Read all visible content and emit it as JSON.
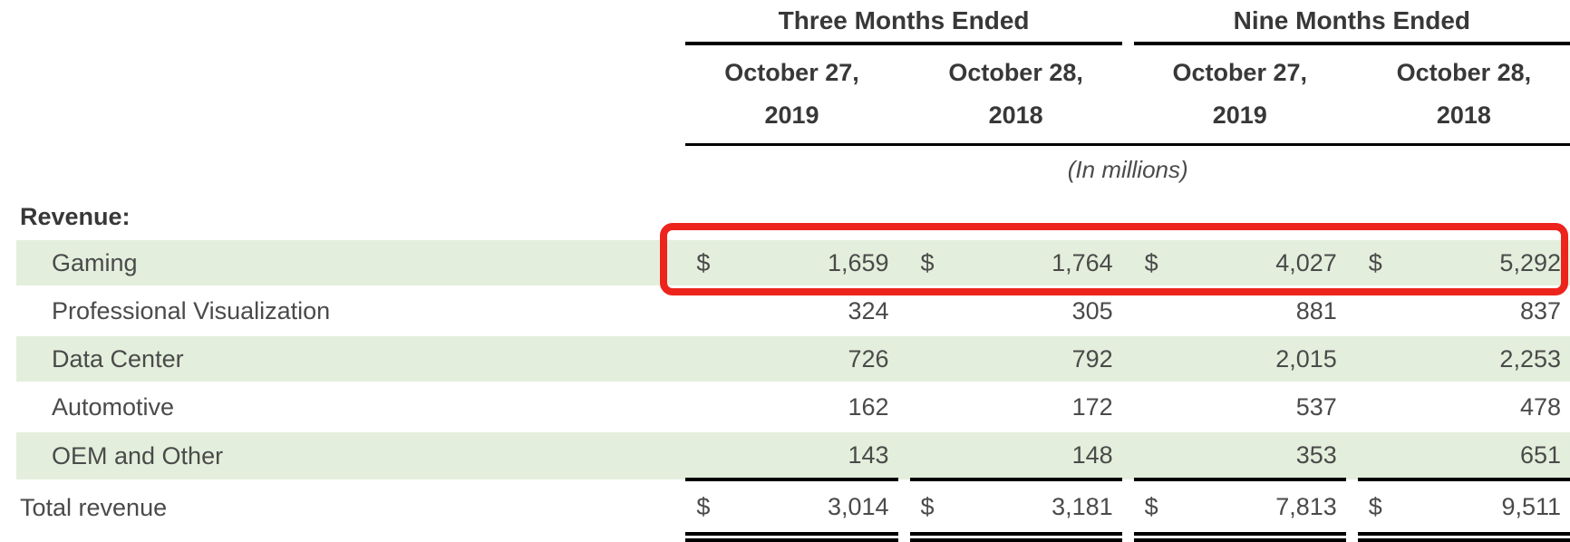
{
  "table": {
    "col_groups": [
      {
        "label": "Three Months Ended"
      },
      {
        "label": "Nine Months Ended"
      }
    ],
    "date_columns": [
      {
        "line1": "October 27,",
        "line2": "2019"
      },
      {
        "line1": "October 28,",
        "line2": "2018"
      },
      {
        "line1": "October 27,",
        "line2": "2019"
      },
      {
        "line1": "October 28,",
        "line2": "2018"
      }
    ],
    "units_note": "(In millions)",
    "section_label": "Revenue:",
    "rows": [
      {
        "label": "Gaming",
        "dollar": "$",
        "values": [
          "1,659",
          "1,764",
          "4,027",
          "5,292"
        ],
        "shaded": true,
        "highlighted": true
      },
      {
        "label": "Professional Visualization",
        "dollar": "",
        "values": [
          "324",
          "305",
          "881",
          "837"
        ],
        "shaded": false,
        "highlighted": false
      },
      {
        "label": "Data Center",
        "dollar": "",
        "values": [
          "726",
          "792",
          "2,015",
          "2,253"
        ],
        "shaded": true,
        "highlighted": false
      },
      {
        "label": "Automotive",
        "dollar": "",
        "values": [
          "162",
          "172",
          "537",
          "478"
        ],
        "shaded": false,
        "highlighted": false
      },
      {
        "label": "OEM and Other",
        "dollar": "",
        "values": [
          "143",
          "148",
          "353",
          "651"
        ],
        "shaded": true,
        "highlighted": false
      }
    ],
    "total_row": {
      "label": "Total revenue",
      "dollar": "$",
      "values": [
        "3,014",
        "3,181",
        "7,813",
        "9,511"
      ]
    }
  },
  "annotation": {
    "type": "highlight-box",
    "target_row": "Gaming"
  },
  "colors": {
    "row_shade": "#e3efdc",
    "highlight_box": "#ed241c",
    "rule_line": "#000000",
    "text": "#4a4a4a",
    "heading_text": "#383838"
  }
}
